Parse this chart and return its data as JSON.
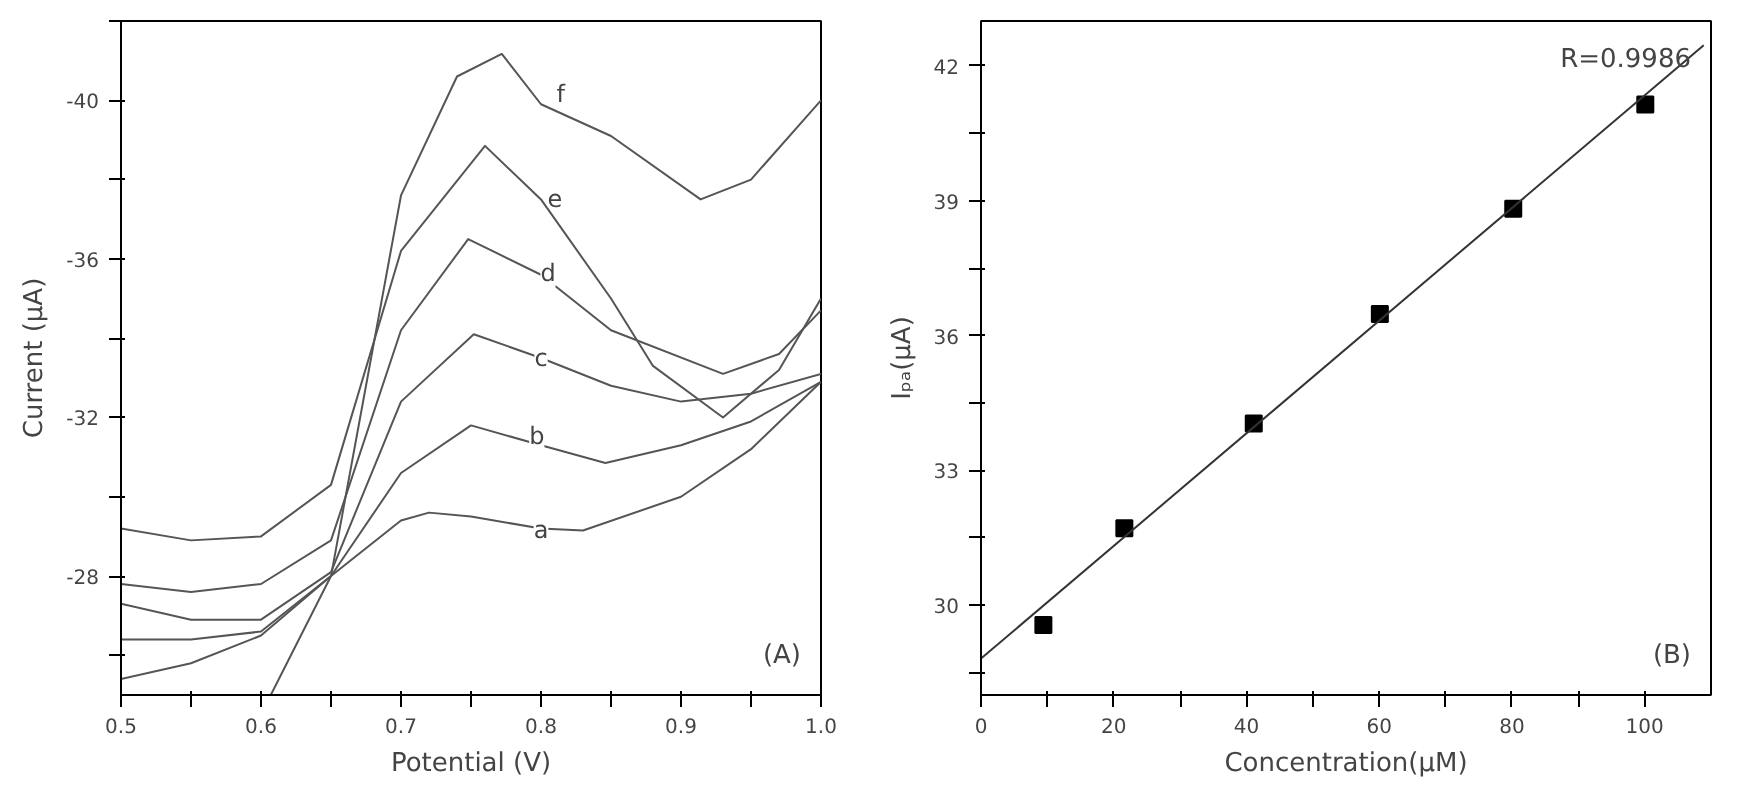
{
  "chart_data": [
    {
      "type": "line",
      "xlabel": "Potential (V)",
      "ylabel": "Current (μA)",
      "xlim": [
        0.5,
        1.0
      ],
      "ylim": [
        -25,
        -42
      ],
      "xticks": [
        0.5,
        {
          "value": 0.55,
          "label": null
        },
        0.6,
        {
          "value": 0.65,
          "label": null
        },
        0.7,
        {
          "value": 0.75,
          "label": null
        },
        0.8,
        {
          "value": 0.85,
          "label": null
        },
        0.9,
        {
          "value": 0.95,
          "label": null
        },
        {
          "value": 1.0,
          "label": "1.0"
        }
      ],
      "yticks": [
        {
          "value": -26,
          "label": null
        },
        -28,
        {
          "value": -30,
          "label": null
        },
        -32,
        {
          "value": -34,
          "label": null
        },
        -36,
        {
          "value": -38,
          "label": null
        },
        -40,
        {
          "value": -42,
          "label": null
        }
      ],
      "grid": false,
      "annotations": [
        "(A)",
        {
          "text": "a",
          "x": 0.8,
          "y": -29.15
        },
        {
          "text": "b",
          "x": 0.797,
          "y": -31.53
        },
        {
          "text": "c",
          "x": 0.8,
          "y": -33.5
        },
        {
          "text": "d",
          "x": 0.805,
          "y": -35.64
        },
        {
          "text": "e",
          "x": 0.81,
          "y": -37.53
        },
        {
          "text": "f",
          "x": 0.814,
          "y": -40.16
        }
      ],
      "series": [
        {
          "color": "#555555",
          "x": [
            0.5,
            0.55,
            0.6,
            0.65,
            0.7,
            0.72,
            0.75,
            0.8,
            0.83,
            0.9,
            0.95,
            1.0
          ],
          "values": [
            -25.4,
            -25.8,
            -26.5,
            -28.0,
            -29.4,
            -29.6,
            -29.5,
            -29.2,
            -29.15,
            -30.0,
            -31.2,
            -32.9
          ]
        },
        {
          "color": "#555555",
          "x": [
            0.5,
            0.55,
            0.6,
            0.65,
            0.7,
            0.75,
            0.8,
            0.846,
            0.9,
            0.95,
            1.0
          ],
          "values": [
            -26.4,
            -26.4,
            -26.6,
            -28.0,
            -30.6,
            -31.8,
            -31.3,
            -30.85,
            -31.3,
            -31.9,
            -32.9
          ]
        },
        {
          "color": "#555555",
          "x": [
            0.5,
            0.55,
            0.6,
            0.65,
            0.7,
            0.752,
            0.8,
            0.85,
            0.9,
            0.95,
            1.0
          ],
          "values": [
            -27.3,
            -26.9,
            -26.9,
            -28.1,
            -32.4,
            -34.1,
            -33.5,
            -32.8,
            -32.4,
            -32.6,
            -33.1
          ]
        },
        {
          "color": "#555555",
          "x": [
            0.5,
            0.55,
            0.6,
            0.65,
            0.7,
            0.748,
            0.8,
            0.85,
            0.93,
            0.97,
            1.0
          ],
          "values": [
            -27.8,
            -27.6,
            -27.8,
            -28.9,
            -34.2,
            -36.5,
            -35.6,
            -34.2,
            -33.1,
            -33.6,
            -34.7
          ]
        },
        {
          "color": "#555555",
          "x": [
            0.5,
            0.55,
            0.6,
            0.65,
            0.7,
            0.76,
            0.8,
            0.85,
            0.88,
            0.93,
            0.97,
            1.0
          ],
          "values": [
            -29.2,
            -28.9,
            -29.0,
            -30.3,
            -36.2,
            -38.85,
            -37.5,
            -35.0,
            -33.3,
            -32.0,
            -33.2,
            -35.0
          ]
        },
        {
          "color": "#555555",
          "x": [
            0.607,
            0.65,
            0.7,
            0.74,
            0.772,
            0.8,
            0.85,
            0.914,
            0.95,
            1.0
          ],
          "values": [
            -25.0,
            -28.0,
            -37.6,
            -40.6,
            -41.17,
            -39.9,
            -39.1,
            -37.5,
            -38.0,
            -40.0
          ]
        }
      ]
    },
    {
      "type": "scatter",
      "xlabel": "Concentration(μM)",
      "ylabel": "Iₚₐ(μA)",
      "xlim": [
        0,
        110
      ],
      "ylim": [
        28,
        43
      ],
      "xticks": [
        0,
        {
          "value": 10,
          "label": null
        },
        20,
        {
          "value": 30,
          "label": null
        },
        40,
        {
          "value": 50,
          "label": null
        },
        60,
        {
          "value": 70,
          "label": null
        },
        80,
        {
          "value": 90,
          "label": null
        },
        100
      ],
      "yticks": [
        {
          "value": 28.5,
          "label": null
        },
        30,
        {
          "value": 31.5,
          "label": null
        },
        33,
        {
          "value": 34.5,
          "label": null
        },
        36,
        {
          "value": 37.5,
          "label": null
        },
        39,
        {
          "value": 40.5,
          "label": null
        },
        42
      ],
      "grid": false,
      "annotations": [
        "(B)",
        "R=0.9986"
      ],
      "series": [
        {
          "type": "scatter",
          "marker": "square",
          "color": "#000000",
          "x": [
            9.4,
            21.6,
            41.1,
            60.1,
            80.2,
            100.1
          ],
          "values": [
            29.56,
            31.71,
            34.04,
            36.48,
            38.82,
            41.14
          ]
        },
        {
          "type": "line",
          "color": "#333333",
          "x": [
            0,
            108.9
          ],
          "values": [
            28.81,
            42.46
          ]
        }
      ]
    }
  ]
}
